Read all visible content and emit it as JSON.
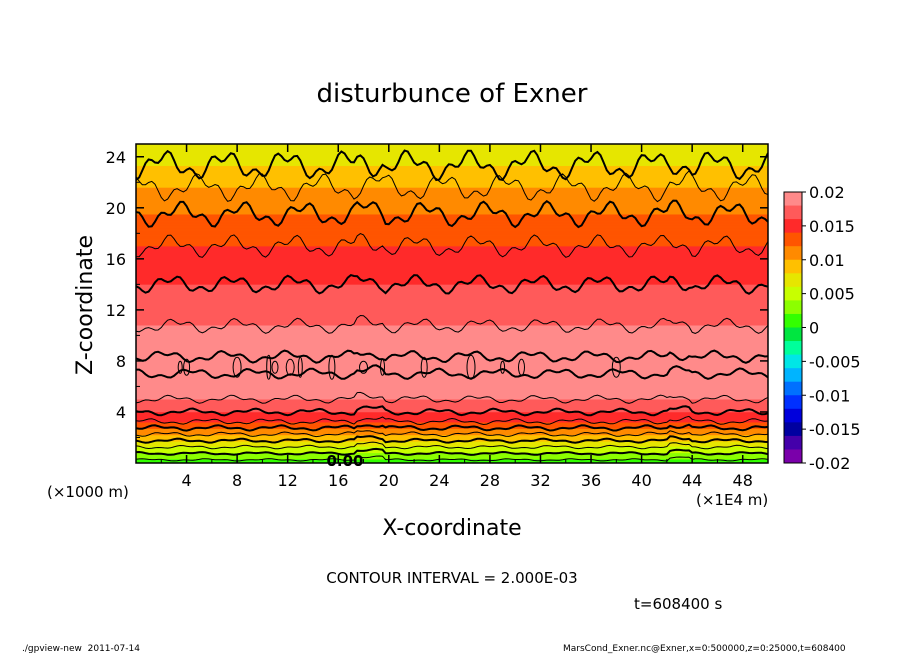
{
  "chart_data": {
    "type": "heatmap",
    "title": "disturbunce of Exner",
    "xlabel": "X-coordinate",
    "ylabel": "Z-coordinate",
    "x_unit_left": "(×1000 m)",
    "x_unit_right": "(×1E4 m)",
    "xlim": [
      0,
      50
    ],
    "ylim": [
      0,
      25
    ],
    "x_ticks": [
      "4",
      "8",
      "12",
      "16",
      "20",
      "24",
      "28",
      "32",
      "36",
      "40",
      "44",
      "48"
    ],
    "x_tick_values": [
      4,
      8,
      12,
      16,
      20,
      24,
      28,
      32,
      36,
      40,
      44,
      48
    ],
    "y_ticks": [
      "4",
      "8",
      "12",
      "16",
      "20",
      "24"
    ],
    "y_tick_values": [
      4,
      8,
      12,
      16,
      20,
      24
    ],
    "colorbar": {
      "levels": [
        "0.02",
        "0.015",
        "0.01",
        "0.005",
        "0",
        "-0.005",
        "-0.01",
        "-0.015",
        "-0.02"
      ],
      "level_values": [
        0.02,
        0.015,
        0.01,
        0.005,
        0,
        -0.005,
        -0.01,
        -0.015,
        -0.02
      ],
      "colors_top_to_bottom": [
        "#ff8a8a",
        "#ff5a5a",
        "#ff2a2a",
        "#ff5500",
        "#ff8a00",
        "#ffc000",
        "#e6e600",
        "#c8ff00",
        "#8cff00",
        "#33ff00",
        "#00e640",
        "#00ff9a",
        "#00e6e6",
        "#00b4ff",
        "#0070ff",
        "#0030ff",
        "#0000dc",
        "#0000a0",
        "#4400aa",
        "#7a00aa"
      ]
    },
    "vertical_profile": {
      "z": [
        0,
        0.5,
        1,
        1.5,
        2,
        2.5,
        3,
        3.5,
        4,
        4.5,
        5,
        5.5,
        6,
        7,
        8,
        9,
        10,
        11,
        12,
        13,
        14,
        15,
        16,
        17,
        18,
        19,
        20,
        21,
        22,
        23,
        24
      ],
      "value": [
        0.001,
        0.003,
        0.005,
        0.007,
        0.009,
        0.011,
        0.013,
        0.015,
        0.016,
        0.017,
        0.018,
        0.019,
        0.0195,
        0.02,
        0.0202,
        0.0196,
        0.0186,
        0.0178,
        0.0172,
        0.0166,
        0.016,
        0.0154,
        0.0146,
        0.014,
        0.0132,
        0.0124,
        0.0116,
        0.0106,
        0.0096,
        0.0084,
        0.0072
      ]
    },
    "contour_label": "0.00",
    "contour_interval_text": "CONTOUR INTERVAL = 2.000E-03",
    "time_text": "t=608400 s"
  },
  "footer": {
    "left": "./gpview-new  2011-07-14",
    "right": "MarsCond_Exner.nc@Exner,x=0:500000,z=0:25000,t=608400"
  }
}
